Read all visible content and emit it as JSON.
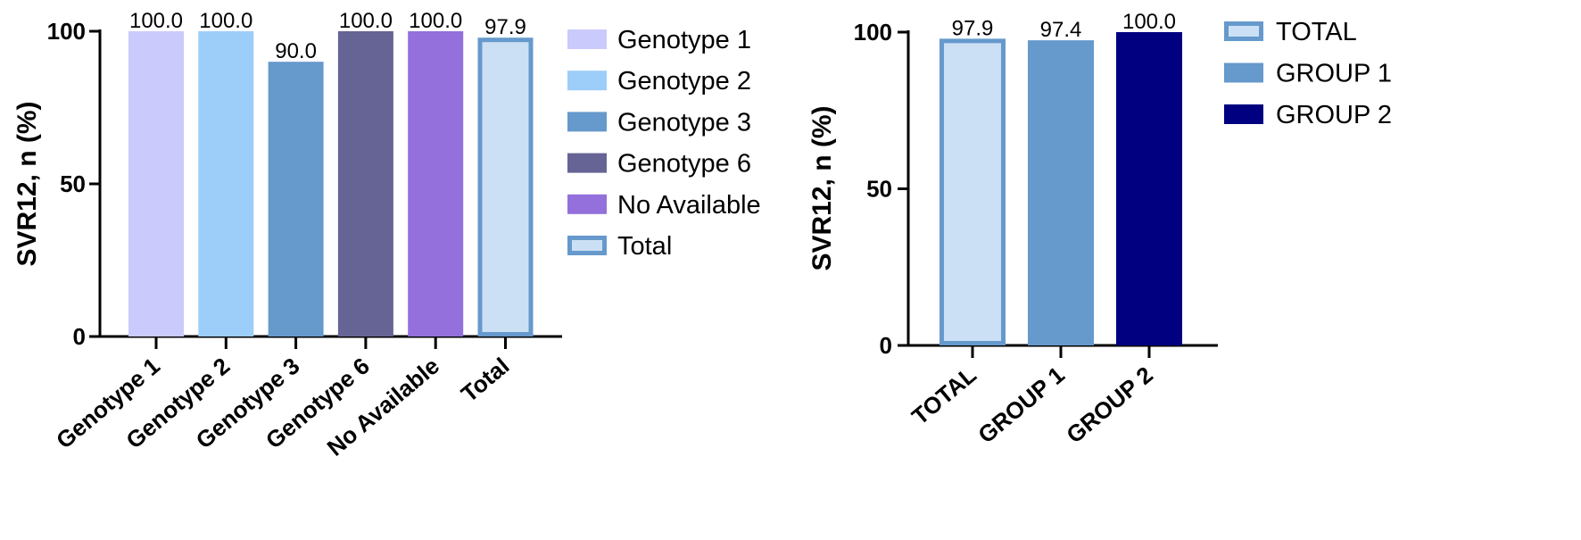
{
  "chart_data": [
    {
      "type": "bar",
      "title": "",
      "xlabel": "",
      "ylabel": "SVR12, n (%)",
      "ylim": [
        0,
        100
      ],
      "yticks": [
        "0",
        "50",
        "100"
      ],
      "categories": [
        "Genotype 1",
        "Genotype 2",
        "Genotype 3",
        "Genotype 6",
        "No Available",
        "Total"
      ],
      "values": [
        100.0,
        100.0,
        90.0,
        100.0,
        100.0,
        97.9
      ],
      "value_labels": [
        "100.0",
        "100.0",
        "90.0",
        "100.0",
        "100.0",
        "97.9"
      ],
      "colors": [
        "#CACAFC",
        "#9DCDF9",
        "#6699CC",
        "#666495",
        "#9370DB",
        "#CCE0F5"
      ],
      "outlined": [
        false,
        false,
        false,
        false,
        false,
        true
      ],
      "outline_color": "#6699CC",
      "legend_placement": "right",
      "legend": [
        "Genotype 1",
        "Genotype 2",
        "Genotype 3",
        "Genotype 6",
        "No Available",
        "Total"
      ],
      "grid": false
    },
    {
      "type": "bar",
      "title": "",
      "xlabel": "",
      "ylabel": "SVR12, n (%)",
      "ylim": [
        0,
        100
      ],
      "yticks": [
        "0",
        "50",
        "100"
      ],
      "categories": [
        "TOTAL",
        "GROUP 1",
        "GROUP 2"
      ],
      "values": [
        97.9,
        97.4,
        100.0
      ],
      "value_labels": [
        "97.9",
        "97.4",
        "100.0"
      ],
      "colors": [
        "#CCE0F5",
        "#6699CC",
        "#000080"
      ],
      "outlined": [
        true,
        false,
        false
      ],
      "outline_color": "#6699CC",
      "legend_placement": "right",
      "legend": [
        "TOTAL",
        "GROUP 1",
        "GROUP 2"
      ],
      "grid": false
    }
  ]
}
